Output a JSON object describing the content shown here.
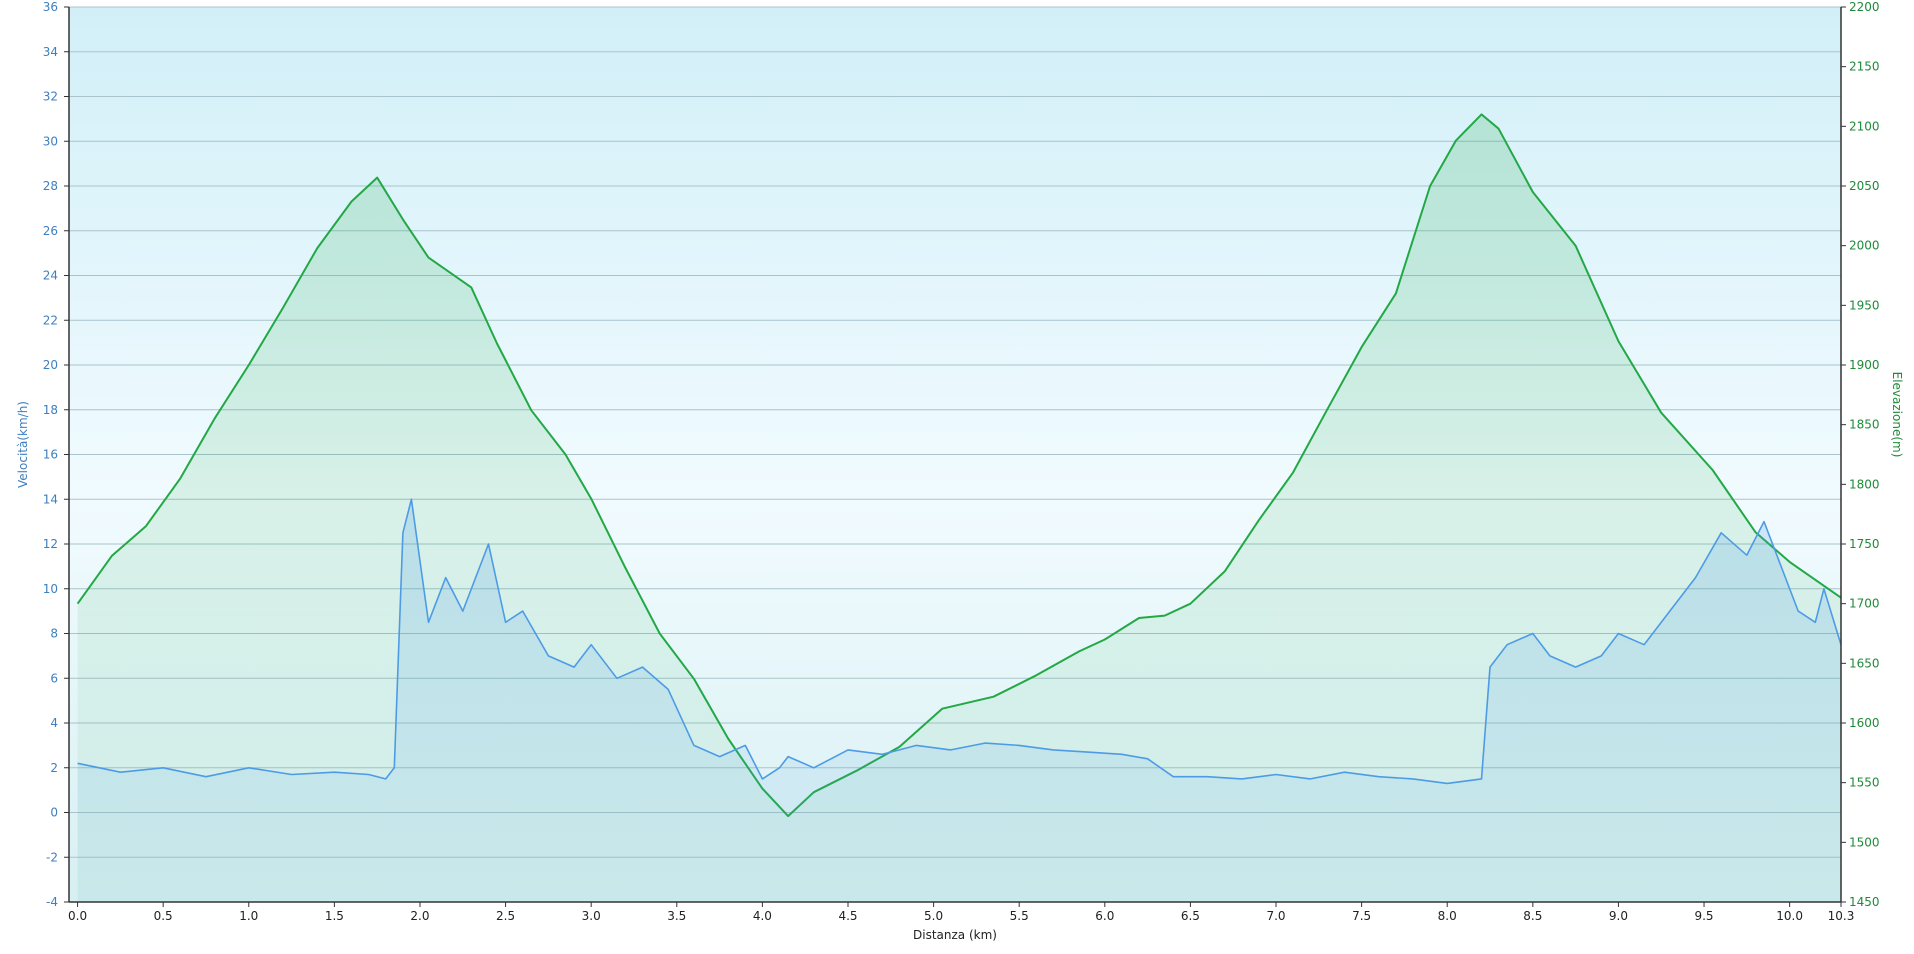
{
  "chart_data": {
    "type": "line",
    "xlabel": "Distanza  (km)",
    "ylabel_left": "Velocità(km/h)",
    "ylabel_right": "Elevazione(m)",
    "xlim": [
      -0.05,
      10.3
    ],
    "ylim_left": [
      -4,
      36
    ],
    "ylim_right": [
      1450,
      2200
    ],
    "x_ticks": [
      0.0,
      0.5,
      1.0,
      1.5,
      2.0,
      2.5,
      3.0,
      3.5,
      4.0,
      4.5,
      5.0,
      5.5,
      6.0,
      6.5,
      7.0,
      7.5,
      8.0,
      8.5,
      9.0,
      9.5,
      10.0,
      10.3
    ],
    "x_tick_labels": [
      "0.0",
      "0.5",
      "1.0",
      "1.5",
      "2.0",
      "2.5",
      "3.0",
      "3.5",
      "4.0",
      "4.5",
      "5.0",
      "5.5",
      "6.0",
      "6.5",
      "7.0",
      "7.5",
      "8.0",
      "8.5",
      "9.0",
      "9.5",
      "10.0",
      "10.3"
    ],
    "y_left_ticks": [
      -4,
      -2,
      0,
      2,
      4,
      6,
      8,
      10,
      12,
      14,
      16,
      18,
      20,
      22,
      24,
      26,
      28,
      30,
      32,
      34,
      36
    ],
    "y_right_ticks": [
      1450,
      1500,
      1550,
      1600,
      1650,
      1700,
      1750,
      1800,
      1850,
      1900,
      1950,
      2000,
      2050,
      2100,
      2150,
      2200
    ],
    "grid": true,
    "colors": {
      "speed": "#4d9be6",
      "elevation": "#22a845",
      "bg_top": "#d2eff8",
      "bg_mid": "#f1fbff",
      "bg_bottom": "#d8f0f2",
      "grid": "#a9c4cc"
    },
    "series": [
      {
        "axis": "right",
        "x": [
          0.0,
          0.2,
          0.4,
          0.6,
          0.8,
          1.0,
          1.2,
          1.4,
          1.6,
          1.75,
          1.9,
          2.05,
          2.3,
          2.45,
          2.65,
          2.85,
          3.0,
          3.2,
          3.4,
          3.6,
          3.8,
          4.0,
          4.15,
          4.3,
          4.55,
          4.8,
          5.05,
          5.35,
          5.6,
          5.85,
          6.0,
          6.2,
          6.35,
          6.5,
          6.7,
          6.9,
          7.1,
          7.3,
          7.5,
          7.7,
          7.9,
          8.05,
          8.2,
          8.3,
          8.5,
          8.75,
          9.0,
          9.25,
          9.55,
          9.8,
          10.0,
          10.15,
          10.3
        ],
        "values": [
          1700,
          1740,
          1765,
          1805,
          1855,
          1900,
          1948,
          1998,
          2037,
          2057,
          2022,
          1990,
          1965,
          1918,
          1862,
          1825,
          1788,
          1730,
          1675,
          1637,
          1587,
          1545,
          1522,
          1542,
          1560,
          1580,
          1612,
          1622,
          1640,
          1660,
          1670,
          1688,
          1690,
          1700,
          1727,
          1770,
          1810,
          1863,
          1915,
          1960,
          2050,
          2088,
          2110,
          2098,
          2045,
          2000,
          1920,
          1860,
          1812,
          1760,
          1735,
          1720,
          1705
        ]
      },
      {
        "axis": "left",
        "x": [
          0.0,
          0.25,
          0.5,
          0.75,
          1.0,
          1.25,
          1.5,
          1.7,
          1.8,
          1.85,
          1.9,
          1.95,
          2.05,
          2.15,
          2.25,
          2.4,
          2.5,
          2.6,
          2.75,
          2.9,
          3.0,
          3.15,
          3.3,
          3.45,
          3.6,
          3.75,
          3.9,
          4.0,
          4.1,
          4.15,
          4.3,
          4.5,
          4.7,
          4.9,
          5.1,
          5.3,
          5.5,
          5.7,
          5.9,
          6.1,
          6.25,
          6.4,
          6.6,
          6.8,
          7.0,
          7.2,
          7.4,
          7.6,
          7.8,
          8.0,
          8.2,
          8.25,
          8.35,
          8.5,
          8.6,
          8.75,
          8.9,
          9.0,
          9.15,
          9.3,
          9.45,
          9.6,
          9.75,
          9.85,
          9.95,
          10.05,
          10.15,
          10.2,
          10.3
        ],
        "values": [
          2.2,
          1.8,
          2.0,
          1.6,
          2.0,
          1.7,
          1.8,
          1.7,
          1.5,
          2.0,
          12.5,
          14.0,
          8.5,
          10.5,
          9.0,
          12.0,
          8.5,
          9.0,
          7.0,
          6.5,
          7.5,
          6.0,
          6.5,
          5.5,
          3.0,
          2.5,
          3.0,
          1.5,
          2.0,
          2.5,
          2.0,
          2.8,
          2.6,
          3.0,
          2.8,
          3.1,
          3.0,
          2.8,
          2.7,
          2.6,
          2.4,
          1.6,
          1.6,
          1.5,
          1.7,
          1.5,
          1.8,
          1.6,
          1.5,
          1.3,
          1.5,
          6.5,
          7.5,
          8.0,
          7.0,
          6.5,
          7.0,
          8.0,
          7.5,
          9.0,
          10.5,
          12.5,
          11.5,
          13.0,
          11.0,
          9.0,
          8.5,
          10.0,
          7.5
        ]
      }
    ]
  }
}
